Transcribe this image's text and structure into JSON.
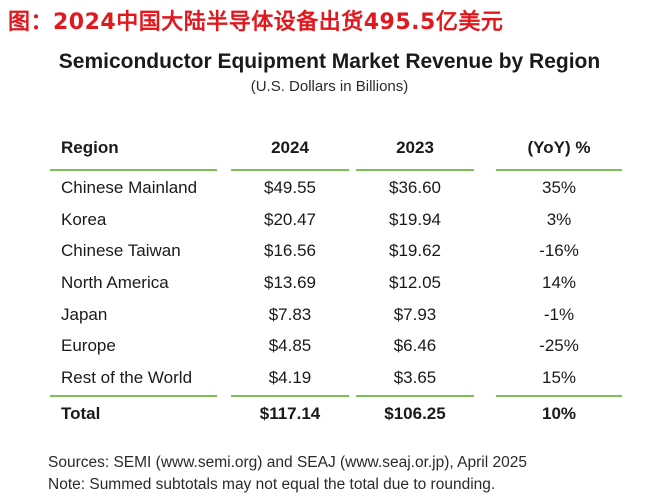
{
  "banner": "图：2024中国大陆半导体设备出货495.5亿美元",
  "chart_data": {
    "type": "table",
    "title": "Semiconductor Equipment Market Revenue by Region",
    "subtitle": "(U.S. Dollars in Billions)",
    "columns": [
      "Region",
      "2024",
      "2023",
      "(YoY) %"
    ],
    "rows": [
      [
        "Chinese Mainland",
        "$49.55",
        "$36.60",
        "35%"
      ],
      [
        "Korea",
        "$20.47",
        "$19.94",
        "3%"
      ],
      [
        "Chinese Taiwan",
        "$16.56",
        "$19.62",
        "-16%"
      ],
      [
        "North America",
        "$13.69",
        "$12.05",
        "14%"
      ],
      [
        "Japan",
        "$7.83",
        "$7.93",
        "-1%"
      ],
      [
        "Europe",
        "$4.85",
        "$6.46",
        "-25%"
      ],
      [
        "Rest of the World",
        "$4.19",
        "$3.65",
        "15%"
      ]
    ],
    "total": [
      "Total",
      "$117.14",
      "$106.25",
      "10%"
    ]
  },
  "footer": {
    "sources": "Sources: SEMI (www.semi.org) and SEAJ (www.seaj.or.jp), April 2025",
    "note": "Note: Summed subtotals may not equal the total due to rounding."
  },
  "colors": {
    "banner": "#e0191f",
    "rule": "#7fbf5a"
  }
}
